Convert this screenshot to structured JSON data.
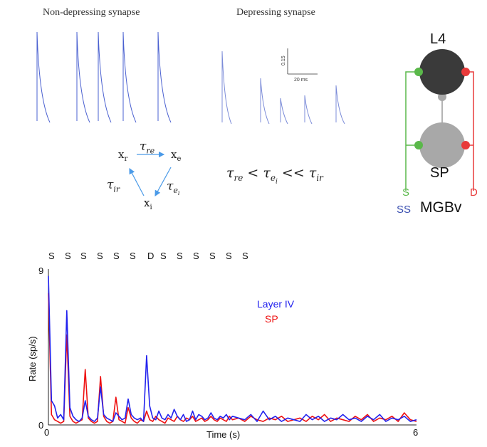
{
  "top": {
    "non_depressing_title": "Non-depressing synapse",
    "depressing_title": "Depressing synapse",
    "scale_bar": {
      "vertical_label": "0.15",
      "horizontal_label": "20 ms"
    }
  },
  "kinetics": {
    "x_r": "x",
    "x_r_sub": "r",
    "x_e": "x",
    "x_e_sub": "e",
    "x_i": "x",
    "x_i_sub": "i",
    "tau_re": "τ",
    "tau_re_sub": "re",
    "tau_ei": "τ",
    "tau_ei_sub": "e",
    "tau_ei_subsub": "i",
    "tau_ir": "τ",
    "tau_ir_sub": "ir",
    "inequality": {
      "t1": "τ",
      "s1": "re",
      "op1": " < ",
      "t2": "τ",
      "s2": "e",
      "s2b": "i",
      "op2": " << ",
      "t3": "τ",
      "s3": "ir"
    }
  },
  "circuit": {
    "l4_label": "L4",
    "sp_label": "SP",
    "s_label": "S",
    "d_label": "D",
    "ss_label": "SS",
    "mgbv_label": "MGBv",
    "colors": {
      "s_line": "#5ab84a",
      "d_line": "#e83a3a",
      "l4_node": "#3a3a3a",
      "sp_node": "#a8a8a8",
      "ss_text": "#3a4fb0"
    }
  },
  "sequence": [
    "S",
    "S",
    "S",
    "S",
    "S",
    "S",
    "D",
    "S",
    "S",
    "S",
    "S",
    "S",
    "S"
  ],
  "chart_data": {
    "type": "line",
    "xlabel": "Time (s)",
    "ylabel": "Rate (sp/s)",
    "xlim": [
      0,
      6
    ],
    "ylim": [
      0,
      9
    ],
    "x_ticks": [
      "0",
      "6"
    ],
    "y_ticks": [
      "0",
      "9"
    ],
    "legend": [
      "Layer IV",
      "SP"
    ],
    "series": [
      {
        "name": "Layer IV",
        "color": "#2222ee",
        "x": [
          0,
          0.05,
          0.1,
          0.15,
          0.2,
          0.25,
          0.3,
          0.35,
          0.4,
          0.45,
          0.5,
          0.55,
          0.6,
          0.65,
          0.7,
          0.75,
          0.8,
          0.85,
          0.9,
          0.95,
          1.0,
          1.05,
          1.1,
          1.15,
          1.2,
          1.25,
          1.3,
          1.35,
          1.4,
          1.45,
          1.5,
          1.55,
          1.6,
          1.65,
          1.7,
          1.75,
          1.8,
          1.85,
          1.9,
          1.95,
          2.0,
          2.05,
          2.1,
          2.15,
          2.2,
          2.25,
          2.3,
          2.35,
          2.4,
          2.45,
          2.5,
          2.55,
          2.6,
          2.65,
          2.7,
          2.75,
          2.8,
          2.85,
          2.9,
          2.95,
          3.0,
          3.1,
          3.2,
          3.3,
          3.4,
          3.5,
          3.6,
          3.7,
          3.8,
          3.9,
          4.0,
          4.1,
          4.2,
          4.3,
          4.4,
          4.5,
          4.6,
          4.7,
          4.8,
          4.9,
          5.0,
          5.1,
          5.2,
          5.3,
          5.4,
          5.5,
          5.6,
          5.7,
          5.8,
          5.9,
          6.0
        ],
        "values": [
          8.6,
          1.4,
          1.1,
          0.4,
          0.6,
          0.3,
          6.6,
          1.0,
          0.5,
          0.3,
          0.2,
          0.4,
          1.4,
          0.5,
          0.3,
          0.2,
          0.4,
          2.2,
          0.6,
          0.4,
          0.3,
          0.2,
          0.7,
          0.5,
          0.3,
          0.4,
          1.5,
          0.6,
          0.4,
          0.3,
          0.4,
          0.2,
          4.0,
          1.1,
          0.4,
          0.3,
          0.8,
          0.4,
          0.3,
          0.6,
          0.4,
          0.9,
          0.5,
          0.3,
          0.6,
          0.2,
          0.3,
          0.8,
          0.3,
          0.6,
          0.5,
          0.3,
          0.4,
          0.7,
          0.4,
          0.3,
          0.5,
          0.4,
          0.6,
          0.3,
          0.5,
          0.4,
          0.3,
          0.6,
          0.2,
          0.8,
          0.3,
          0.5,
          0.2,
          0.4,
          0.3,
          0.2,
          0.6,
          0.3,
          0.5,
          0.2,
          0.4,
          0.3,
          0.6,
          0.3,
          0.4,
          0.2,
          0.5,
          0.3,
          0.6,
          0.2,
          0.4,
          0.3,
          0.5,
          0.2,
          0.3
        ]
      },
      {
        "name": "SP",
        "color": "#ee1111",
        "x": [
          0,
          0.05,
          0.1,
          0.15,
          0.2,
          0.25,
          0.3,
          0.35,
          0.4,
          0.45,
          0.5,
          0.55,
          0.6,
          0.65,
          0.7,
          0.75,
          0.8,
          0.85,
          0.9,
          0.95,
          1.0,
          1.05,
          1.1,
          1.15,
          1.2,
          1.25,
          1.3,
          1.35,
          1.4,
          1.45,
          1.5,
          1.55,
          1.6,
          1.65,
          1.7,
          1.75,
          1.8,
          1.85,
          1.9,
          1.95,
          2.0,
          2.05,
          2.1,
          2.15,
          2.2,
          2.25,
          2.3,
          2.35,
          2.4,
          2.45,
          2.5,
          2.55,
          2.6,
          2.65,
          2.7,
          2.75,
          2.8,
          2.85,
          2.9,
          2.95,
          3.0,
          3.1,
          3.2,
          3.3,
          3.4,
          3.5,
          3.6,
          3.7,
          3.8,
          3.9,
          4.0,
          4.1,
          4.2,
          4.3,
          4.4,
          4.5,
          4.6,
          4.7,
          4.8,
          4.9,
          5.0,
          5.1,
          5.2,
          5.3,
          5.4,
          5.5,
          5.6,
          5.7,
          5.8,
          5.9,
          6.0
        ],
        "values": [
          7.6,
          0.6,
          0.3,
          0.2,
          0.1,
          0.2,
          5.2,
          0.5,
          0.2,
          0.1,
          0.2,
          0.3,
          3.2,
          0.4,
          0.2,
          0.1,
          0.2,
          2.8,
          0.5,
          0.2,
          0.1,
          0.2,
          1.6,
          0.3,
          0.2,
          0.1,
          1.0,
          0.4,
          0.2,
          0.1,
          0.3,
          0.2,
          0.8,
          0.3,
          0.2,
          0.5,
          0.3,
          0.2,
          0.1,
          0.4,
          0.3,
          0.2,
          0.5,
          0.3,
          0.2,
          0.4,
          0.3,
          0.5,
          0.2,
          0.3,
          0.4,
          0.2,
          0.3,
          0.5,
          0.3,
          0.2,
          0.4,
          0.3,
          0.2,
          0.5,
          0.3,
          0.4,
          0.2,
          0.5,
          0.3,
          0.2,
          0.4,
          0.3,
          0.5,
          0.2,
          0.3,
          0.4,
          0.2,
          0.5,
          0.3,
          0.6,
          0.2,
          0.4,
          0.3,
          0.2,
          0.5,
          0.3,
          0.6,
          0.2,
          0.4,
          0.3,
          0.5,
          0.2,
          0.7,
          0.3,
          0.2
        ]
      }
    ]
  }
}
